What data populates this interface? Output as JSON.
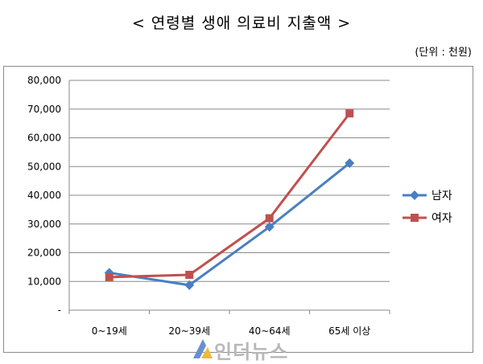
{
  "title": "< 연령별 생애 의료비 지출액 >",
  "unit": "(단위 : 천원)",
  "watermark": "인더뉴스",
  "chart_data": {
    "type": "line",
    "categories": [
      "0~19세",
      "20~39세",
      "40~64세",
      "65세 이상"
    ],
    "series": [
      {
        "name": "남자",
        "values": [
          13000,
          8700,
          29000,
          51200
        ],
        "color": "#4a7fc1",
        "marker": "diamond"
      },
      {
        "name": "여자",
        "values": [
          11500,
          12300,
          32000,
          68500
        ],
        "color": "#c0504d",
        "marker": "square"
      }
    ],
    "yticks": [
      "-",
      "10,000",
      "20,000",
      "30,000",
      "40,000",
      "50,000",
      "60,000",
      "70,000",
      "80,000"
    ],
    "ylim": [
      0,
      80000
    ],
    "grid": true,
    "legend": "right"
  }
}
